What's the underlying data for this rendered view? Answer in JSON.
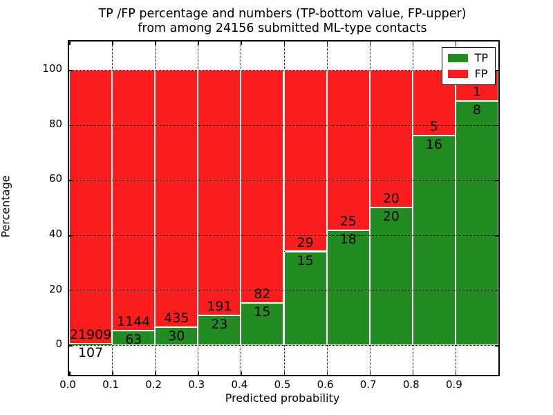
{
  "figure": {
    "title_line1": "TP /FP percentage and numbers (TP-bottom value, FP-upper)",
    "title_line2": "from among 24156 submitted ML-type contacts"
  },
  "chart_data": {
    "type": "bar",
    "subtype": "stacked-percentage",
    "title": "TP /FP percentage and numbers (TP-bottom value, FP-upper) from among 24156 submitted ML-type contacts",
    "xlabel": "Predicted probability",
    "ylabel": "Percentage",
    "total_contacts": 24156,
    "xlim": [
      0.0,
      1.0
    ],
    "ylim": [
      -10.8,
      110.4
    ],
    "bin_width": 0.1,
    "x_ticks": [
      0.0,
      0.1,
      0.2,
      0.3,
      0.4,
      0.5,
      0.6,
      0.7,
      0.8,
      0.9
    ],
    "x_tick_labels": [
      "0.0",
      "0.1",
      "0.2",
      "0.3",
      "0.4",
      "0.5",
      "0.6",
      "0.7",
      "0.8",
      "0.9"
    ],
    "y_ticks": [
      0,
      20,
      40,
      60,
      80,
      100
    ],
    "y_tick_labels": [
      "0",
      "20",
      "40",
      "60",
      "80",
      "100"
    ],
    "grid": true,
    "grid_style": "dotted",
    "bar_edge_color": "#ffffff",
    "series": [
      {
        "name": "TP",
        "color": "#228b22",
        "values": [
          107,
          63,
          30,
          23,
          15,
          15,
          18,
          20,
          16,
          8
        ]
      },
      {
        "name": "FP",
        "color": "#fb1d1d",
        "values": [
          21909,
          1144,
          435,
          191,
          82,
          29,
          25,
          20,
          5,
          1
        ]
      }
    ],
    "tp_percent_of_bin": [
      0.49,
      5.22,
      6.45,
      10.75,
      15.46,
      34.09,
      41.86,
      50.0,
      76.19,
      88.89
    ],
    "legend": {
      "position": "upper right",
      "entries": [
        {
          "label": "TP",
          "color": "#228b22"
        },
        {
          "label": "FP",
          "color": "#fb1d1d"
        }
      ]
    }
  }
}
